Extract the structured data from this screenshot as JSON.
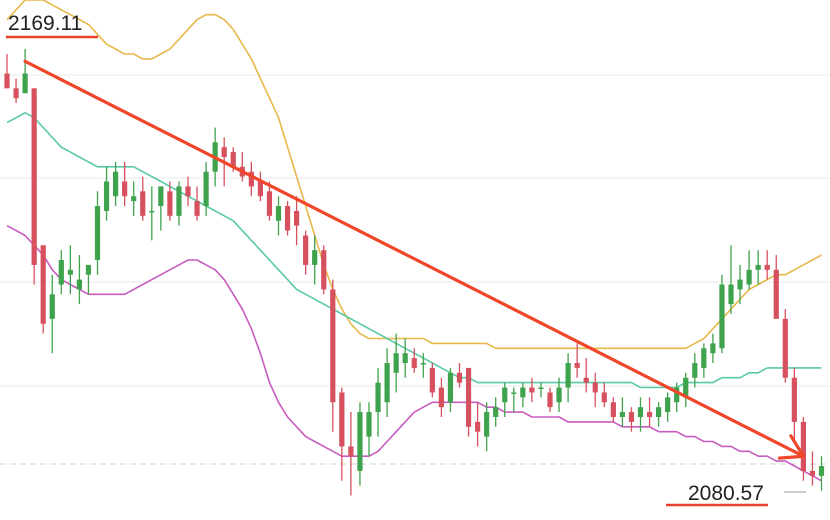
{
  "chart_data": {
    "type": "candlestick",
    "ylim": [
      2072,
      2178
    ],
    "grid": true,
    "price_labels": {
      "high": "2169.11",
      "low": "2080.57"
    },
    "colors": {
      "up": "#3fa34d",
      "down": "#d7505e",
      "middle_band": "#59c9a5",
      "upper_band": "#e8b84a",
      "lower_band": "#c85bc0",
      "trend_arrow": "#f0462a",
      "grid": "#e9e9e9"
    },
    "candles": [
      {
        "o": 2163,
        "h": 2167,
        "l": 2160,
        "c": 2160
      },
      {
        "o": 2160,
        "h": 2162,
        "l": 2157,
        "c": 2158
      },
      {
        "o": 2159,
        "h": 2168,
        "l": 2160,
        "c": 2163
      },
      {
        "o": 2160,
        "h": 2160,
        "l": 2120,
        "c": 2124
      },
      {
        "o": 2128,
        "h": 2128,
        "l": 2110,
        "c": 2112
      },
      {
        "o": 2113,
        "h": 2122,
        "l": 2106,
        "c": 2118
      },
      {
        "o": 2120,
        "h": 2127,
        "l": 2118,
        "c": 2125
      },
      {
        "o": 2122,
        "h": 2128,
        "l": 2118,
        "c": 2123
      },
      {
        "o": 2119,
        "h": 2126,
        "l": 2116,
        "c": 2121
      },
      {
        "o": 2122,
        "h": 2124,
        "l": 2118,
        "c": 2124
      },
      {
        "o": 2125,
        "h": 2139,
        "l": 2122,
        "c": 2136
      },
      {
        "o": 2135,
        "h": 2144,
        "l": 2133,
        "c": 2141
      },
      {
        "o": 2138,
        "h": 2145,
        "l": 2136,
        "c": 2143
      },
      {
        "o": 2141,
        "h": 2145,
        "l": 2136,
        "c": 2138
      },
      {
        "o": 2137,
        "h": 2141,
        "l": 2134,
        "c": 2138
      },
      {
        "o": 2139,
        "h": 2142,
        "l": 2133,
        "c": 2134
      },
      {
        "o": 2135,
        "h": 2140,
        "l": 2129,
        "c": 2135
      },
      {
        "o": 2136,
        "h": 2140,
        "l": 2131,
        "c": 2140
      },
      {
        "o": 2139,
        "h": 2141,
        "l": 2133,
        "c": 2134
      },
      {
        "o": 2134,
        "h": 2141,
        "l": 2132,
        "c": 2140
      },
      {
        "o": 2140,
        "h": 2142,
        "l": 2136,
        "c": 2138
      },
      {
        "o": 2137,
        "h": 2140,
        "l": 2133,
        "c": 2134
      },
      {
        "o": 2136,
        "h": 2145,
        "l": 2134,
        "c": 2143
      },
      {
        "o": 2143,
        "h": 2152,
        "l": 2140,
        "c": 2149
      },
      {
        "o": 2148,
        "h": 2150,
        "l": 2140,
        "c": 2146
      },
      {
        "o": 2147,
        "h": 2148,
        "l": 2143,
        "c": 2144
      },
      {
        "o": 2144,
        "h": 2147,
        "l": 2141,
        "c": 2142
      },
      {
        "o": 2143,
        "h": 2145,
        "l": 2138,
        "c": 2140
      },
      {
        "o": 2141,
        "h": 2143,
        "l": 2137,
        "c": 2138
      },
      {
        "o": 2139,
        "h": 2141,
        "l": 2133,
        "c": 2134
      },
      {
        "o": 2133,
        "h": 2138,
        "l": 2130,
        "c": 2136
      },
      {
        "o": 2136,
        "h": 2137,
        "l": 2130,
        "c": 2131
      },
      {
        "o": 2135,
        "h": 2138,
        "l": 2128,
        "c": 2132
      },
      {
        "o": 2130,
        "h": 2131,
        "l": 2122,
        "c": 2124
      },
      {
        "o": 2124,
        "h": 2130,
        "l": 2120,
        "c": 2127
      },
      {
        "o": 2127,
        "h": 2128,
        "l": 2118,
        "c": 2119
      },
      {
        "o": 2119,
        "h": 2121,
        "l": 2090,
        "c": 2096
      },
      {
        "o": 2098,
        "h": 2099,
        "l": 2080,
        "c": 2087
      },
      {
        "o": 2087,
        "h": 2094,
        "l": 2077,
        "c": 2085
      },
      {
        "o": 2082,
        "h": 2096,
        "l": 2079,
        "c": 2094
      },
      {
        "o": 2089,
        "h": 2096,
        "l": 2085,
        "c": 2094
      },
      {
        "o": 2094,
        "h": 2103,
        "l": 2089,
        "c": 2100
      },
      {
        "o": 2096,
        "h": 2107,
        "l": 2093,
        "c": 2104
      },
      {
        "o": 2102,
        "h": 2110,
        "l": 2098,
        "c": 2106
      },
      {
        "o": 2104,
        "h": 2109,
        "l": 2101,
        "c": 2106
      },
      {
        "o": 2105,
        "h": 2107,
        "l": 2102,
        "c": 2103
      },
      {
        "o": 2104,
        "h": 2106,
        "l": 2101,
        "c": 2104
      },
      {
        "o": 2103,
        "h": 2104,
        "l": 2097,
        "c": 2098
      },
      {
        "o": 2099,
        "h": 2101,
        "l": 2093,
        "c": 2095
      },
      {
        "o": 2096,
        "h": 2103,
        "l": 2094,
        "c": 2102
      },
      {
        "o": 2102,
        "h": 2104,
        "l": 2099,
        "c": 2100
      },
      {
        "o": 2103,
        "h": 2103,
        "l": 2089,
        "c": 2091
      },
      {
        "o": 2092,
        "h": 2096,
        "l": 2087,
        "c": 2090
      },
      {
        "o": 2089,
        "h": 2096,
        "l": 2086,
        "c": 2094
      },
      {
        "o": 2093,
        "h": 2097,
        "l": 2091,
        "c": 2095
      },
      {
        "o": 2096,
        "h": 2100,
        "l": 2093,
        "c": 2099
      },
      {
        "o": 2098,
        "h": 2099,
        "l": 2094,
        "c": 2098
      },
      {
        "o": 2097,
        "h": 2100,
        "l": 2095,
        "c": 2099
      },
      {
        "o": 2099,
        "h": 2101,
        "l": 2096,
        "c": 2098
      },
      {
        "o": 2099,
        "h": 2100,
        "l": 2097,
        "c": 2099
      },
      {
        "o": 2098,
        "h": 2099,
        "l": 2094,
        "c": 2095
      },
      {
        "o": 2096,
        "h": 2101,
        "l": 2094,
        "c": 2099
      },
      {
        "o": 2099,
        "h": 2106,
        "l": 2096,
        "c": 2104
      },
      {
        "o": 2104,
        "h": 2108,
        "l": 2101,
        "c": 2103
      },
      {
        "o": 2101,
        "h": 2105,
        "l": 2098,
        "c": 2100
      },
      {
        "o": 2100,
        "h": 2102,
        "l": 2095,
        "c": 2098
      },
      {
        "o": 2098,
        "h": 2100,
        "l": 2095,
        "c": 2096
      },
      {
        "o": 2096,
        "h": 2097,
        "l": 2092,
        "c": 2093
      },
      {
        "o": 2093,
        "h": 2097,
        "l": 2091,
        "c": 2094
      },
      {
        "o": 2094,
        "h": 2095,
        "l": 2090,
        "c": 2092
      },
      {
        "o": 2093,
        "h": 2097,
        "l": 2090,
        "c": 2095
      },
      {
        "o": 2094,
        "h": 2097,
        "l": 2091,
        "c": 2093
      },
      {
        "o": 2093,
        "h": 2096,
        "l": 2091,
        "c": 2095
      },
      {
        "o": 2094,
        "h": 2098,
        "l": 2092,
        "c": 2097
      },
      {
        "o": 2096,
        "h": 2100,
        "l": 2094,
        "c": 2099
      },
      {
        "o": 2097,
        "h": 2102,
        "l": 2095,
        "c": 2101
      },
      {
        "o": 2101,
        "h": 2106,
        "l": 2099,
        "c": 2104
      },
      {
        "o": 2103,
        "h": 2108,
        "l": 2101,
        "c": 2107
      },
      {
        "o": 2106,
        "h": 2110,
        "l": 2104,
        "c": 2108
      },
      {
        "o": 2107,
        "h": 2122,
        "l": 2106,
        "c": 2120
      },
      {
        "o": 2116,
        "h": 2128,
        "l": 2114,
        "c": 2120
      },
      {
        "o": 2119,
        "h": 2124,
        "l": 2116,
        "c": 2121
      },
      {
        "o": 2120,
        "h": 2127,
        "l": 2119,
        "c": 2123
      },
      {
        "o": 2123,
        "h": 2127,
        "l": 2120,
        "c": 2124
      },
      {
        "o": 2124,
        "h": 2127,
        "l": 2121,
        "c": 2123
      },
      {
        "o": 2123,
        "h": 2126,
        "l": 2114,
        "c": 2113
      },
      {
        "o": 2113,
        "h": 2115,
        "l": 2100,
        "c": 2101
      },
      {
        "o": 2101,
        "h": 2103,
        "l": 2088,
        "c": 2092
      },
      {
        "o": 2092,
        "h": 2093,
        "l": 2080,
        "c": 2082
      },
      {
        "o": 2082,
        "h": 2086,
        "l": 2079,
        "c": 2081
      },
      {
        "o": 2081,
        "h": 2085,
        "l": 2078,
        "c": 2083
      }
    ],
    "bands": {
      "middle": [
        2153,
        2154,
        2155,
        2154,
        2152,
        2150,
        2148,
        2147,
        2146,
        2145,
        2144,
        2144,
        2144,
        2144,
        2144,
        2143,
        2142,
        2141,
        2140,
        2139,
        2138,
        2137,
        2136,
        2135,
        2134,
        2133,
        2131,
        2129,
        2127,
        2125,
        2123,
        2121,
        2119,
        2118,
        2117,
        2116,
        2115,
        2114,
        2113,
        2112,
        2111,
        2110,
        2109,
        2108,
        2107,
        2106,
        2105,
        2104,
        2103,
        2102,
        2101,
        2101,
        2100,
        2100,
        2100,
        2100,
        2100,
        2100,
        2100,
        2100,
        2100,
        2100,
        2100,
        2100,
        2100,
        2100,
        2100,
        2100,
        2100,
        2100,
        2099,
        2099,
        2099,
        2099,
        2099,
        2100,
        2100,
        2100,
        2100,
        2101,
        2101,
        2101,
        2102,
        2102,
        2103,
        2103,
        2103,
        2103,
        2103,
        2103,
        2103
      ],
      "upper": [
        2174,
        2176,
        2178,
        2178,
        2178,
        2177,
        2176,
        2175,
        2174,
        2173,
        2171,
        2169,
        2168,
        2167,
        2167,
        2166,
        2166,
        2167,
        2168,
        2170,
        2172,
        2174,
        2175,
        2175,
        2174,
        2172,
        2169,
        2166,
        2162,
        2158,
        2154,
        2148,
        2142,
        2136,
        2130,
        2124,
        2119,
        2115,
        2112,
        2110,
        2109,
        2109,
        2109,
        2109,
        2109,
        2109,
        2109,
        2108,
        2108,
        2108,
        2108,
        2108,
        2108,
        2108,
        2107,
        2107,
        2107,
        2107,
        2107,
        2107,
        2107,
        2107,
        2107,
        2107,
        2107,
        2107,
        2107,
        2107,
        2107,
        2107,
        2107,
        2107,
        2107,
        2107,
        2107,
        2107,
        2108,
        2109,
        2111,
        2113,
        2115,
        2117,
        2119,
        2120,
        2121,
        2122,
        2122,
        2123,
        2124,
        2125,
        2126
      ],
      "lower": [
        2132,
        2131,
        2130,
        2128,
        2126,
        2123,
        2121,
        2120,
        2119,
        2118,
        2118,
        2118,
        2118,
        2118,
        2119,
        2120,
        2121,
        2122,
        2123,
        2124,
        2125,
        2125,
        2124,
        2123,
        2121,
        2118,
        2115,
        2111,
        2106,
        2100,
        2096,
        2093,
        2091,
        2089,
        2088,
        2087,
        2086,
        2085,
        2085,
        2085,
        2085,
        2086,
        2088,
        2090,
        2092,
        2094,
        2095,
        2096,
        2096,
        2096,
        2096,
        2096,
        2096,
        2095,
        2095,
        2094,
        2094,
        2094,
        2093,
        2093,
        2093,
        2093,
        2092,
        2092,
        2092,
        2092,
        2092,
        2092,
        2091,
        2091,
        2091,
        2091,
        2090,
        2090,
        2090,
        2089,
        2089,
        2088,
        2088,
        2087,
        2087,
        2086,
        2086,
        2085,
        2085,
        2084,
        2084,
        2083,
        2082,
        2081,
        2080
      ]
    },
    "trend_arrow": {
      "from": [
        2,
        2165.5
      ],
      "to": [
        88,
        2085.0
      ]
    }
  }
}
